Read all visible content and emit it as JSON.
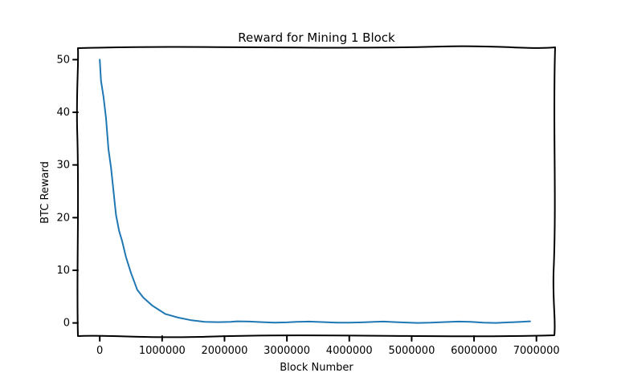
{
  "chart_data": {
    "type": "line",
    "title": "Reward for Mining 1 Block",
    "xlabel": "Block Number",
    "ylabel": "BTC Reward",
    "xlim": [
      -350000,
      7300000
    ],
    "ylim": [
      -2.5,
      52.5
    ],
    "xticks": [
      0,
      1000000,
      2000000,
      3000000,
      4000000,
      5000000,
      6000000,
      7000000
    ],
    "xtick_labels": [
      "0",
      "1000000",
      "2000000",
      "3000000",
      "4000000",
      "5000000",
      "6000000",
      "7000000"
    ],
    "yticks": [
      0,
      10,
      20,
      30,
      40,
      50
    ],
    "ytick_labels": [
      "0",
      "10",
      "20",
      "30",
      "40",
      "50"
    ],
    "grid": false,
    "legend": "none",
    "series_color": "#1f77b4",
    "x": [
      0,
      20000,
      60000,
      100000,
      140000,
      180000,
      220000,
      260000,
      310000,
      360000,
      420000,
      500000,
      600000,
      700000,
      840000,
      1050000,
      1260000,
      1470000,
      1680000,
      1900000,
      2100000,
      2200000,
      2400000,
      2600000,
      2800000,
      3000000,
      3150000,
      3350000,
      3600000,
      3800000,
      4000000,
      4200000,
      4400000,
      4550000,
      4750000,
      4950000,
      5100000,
      5300000,
      5500000,
      5750000,
      5950000,
      6150000,
      6350000,
      6550000,
      6750000,
      6900000
    ],
    "y": [
      50,
      46,
      43,
      39,
      33,
      29.5,
      25,
      20.5,
      17.5,
      15.5,
      12.5,
      9.5,
      6.3,
      4.8,
      3.3,
      1.7,
      1.0,
      0.5,
      0.2,
      0.15,
      0.2,
      0.3,
      0.25,
      0.15,
      0.05,
      0.1,
      0.2,
      0.25,
      0.15,
      0.05,
      0.05,
      0.1,
      0.2,
      0.25,
      0.15,
      0.05,
      0.0,
      0.05,
      0.15,
      0.25,
      0.2,
      0.05,
      0.0,
      0.1,
      0.2,
      0.3
    ]
  }
}
